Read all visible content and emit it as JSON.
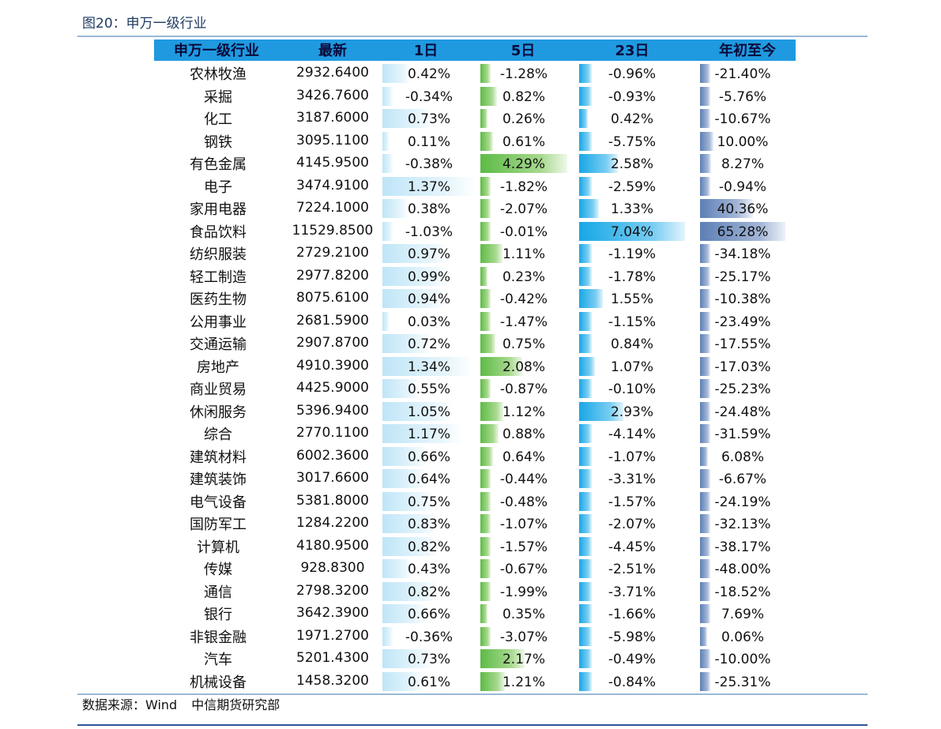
{
  "figure_title": "图20：申万一级行业",
  "source": {
    "label": "数据来源：Wind",
    "org": "中信期货研究部"
  },
  "chart_data": {
    "type": "table",
    "title": "图20：申万一级行业",
    "columns": [
      "申万一级行业",
      "最新",
      "1日",
      "5日",
      "23日",
      "年初至今"
    ],
    "rows": [
      {
        "industry": "农林牧渔",
        "latest": "2932.6400",
        "d1": "0.42%",
        "d5": "-1.28%",
        "d23": "-0.96%",
        "ytd": "-21.40%"
      },
      {
        "industry": "采掘",
        "latest": "3426.7600",
        "d1": "-0.34%",
        "d5": "0.82%",
        "d23": "-0.93%",
        "ytd": "-5.76%"
      },
      {
        "industry": "化工",
        "latest": "3187.6000",
        "d1": "0.73%",
        "d5": "0.26%",
        "d23": "0.42%",
        "ytd": "-10.67%"
      },
      {
        "industry": "钢铁",
        "latest": "3095.1100",
        "d1": "0.11%",
        "d5": "0.61%",
        "d23": "-5.75%",
        "ytd": "10.00%"
      },
      {
        "industry": "有色金属",
        "latest": "4145.9500",
        "d1": "-0.38%",
        "d5": "4.29%",
        "d23": "2.58%",
        "ytd": "8.27%"
      },
      {
        "industry": "电子",
        "latest": "3474.9100",
        "d1": "1.37%",
        "d5": "-1.82%",
        "d23": "-2.59%",
        "ytd": "-0.94%"
      },
      {
        "industry": "家用电器",
        "latest": "7224.1000",
        "d1": "0.38%",
        "d5": "-2.07%",
        "d23": "1.33%",
        "ytd": "40.36%"
      },
      {
        "industry": "食品饮料",
        "latest": "11529.8500",
        "d1": "-1.03%",
        "d5": "-0.01%",
        "d23": "7.04%",
        "ytd": "65.28%"
      },
      {
        "industry": "纺织服装",
        "latest": "2729.2100",
        "d1": "0.97%",
        "d5": "1.11%",
        "d23": "-1.19%",
        "ytd": "-34.18%"
      },
      {
        "industry": "轻工制造",
        "latest": "2977.8200",
        "d1": "0.99%",
        "d5": "0.23%",
        "d23": "-1.78%",
        "ytd": "-25.17%"
      },
      {
        "industry": "医药生物",
        "latest": "8075.6100",
        "d1": "0.94%",
        "d5": "-0.42%",
        "d23": "1.55%",
        "ytd": "-10.38%"
      },
      {
        "industry": "公用事业",
        "latest": "2681.5900",
        "d1": "0.03%",
        "d5": "-1.47%",
        "d23": "-1.15%",
        "ytd": "-23.49%"
      },
      {
        "industry": "交通运输",
        "latest": "2907.8700",
        "d1": "0.72%",
        "d5": "0.75%",
        "d23": "0.84%",
        "ytd": "-17.55%"
      },
      {
        "industry": "房地产",
        "latest": "4910.3900",
        "d1": "1.34%",
        "d5": "2.08%",
        "d23": "1.07%",
        "ytd": "-17.03%"
      },
      {
        "industry": "商业贸易",
        "latest": "4425.9000",
        "d1": "0.55%",
        "d5": "-0.87%",
        "d23": "-0.10%",
        "ytd": "-25.23%"
      },
      {
        "industry": "休闲服务",
        "latest": "5396.9400",
        "d1": "1.05%",
        "d5": "1.12%",
        "d23": "2.93%",
        "ytd": "-24.48%"
      },
      {
        "industry": "综合",
        "latest": "2770.1100",
        "d1": "1.17%",
        "d5": "0.88%",
        "d23": "-4.14%",
        "ytd": "-31.59%"
      },
      {
        "industry": "建筑材料",
        "latest": "6002.3600",
        "d1": "0.66%",
        "d5": "0.64%",
        "d23": "-1.07%",
        "ytd": "6.08%"
      },
      {
        "industry": "建筑装饰",
        "latest": "3017.6600",
        "d1": "0.64%",
        "d5": "-0.44%",
        "d23": "-3.31%",
        "ytd": "-6.67%"
      },
      {
        "industry": "电气设备",
        "latest": "5381.8000",
        "d1": "0.75%",
        "d5": "-0.48%",
        "d23": "-1.57%",
        "ytd": "-24.19%"
      },
      {
        "industry": "国防军工",
        "latest": "1284.2200",
        "d1": "0.83%",
        "d5": "-1.07%",
        "d23": "-2.07%",
        "ytd": "-32.13%"
      },
      {
        "industry": "计算机",
        "latest": "4180.9500",
        "d1": "0.82%",
        "d5": "-1.57%",
        "d23": "-4.45%",
        "ytd": "-38.17%"
      },
      {
        "industry": "传媒",
        "latest": "928.8300",
        "d1": "0.43%",
        "d5": "-0.67%",
        "d23": "-2.51%",
        "ytd": "-48.00%"
      },
      {
        "industry": "通信",
        "latest": "2798.3200",
        "d1": "0.82%",
        "d5": "-1.99%",
        "d23": "-3.71%",
        "ytd": "-18.52%"
      },
      {
        "industry": "银行",
        "latest": "3642.3900",
        "d1": "0.66%",
        "d5": "0.35%",
        "d23": "-1.66%",
        "ytd": "7.69%"
      },
      {
        "industry": "非银金融",
        "latest": "1971.2700",
        "d1": "-0.36%",
        "d5": "-3.07%",
        "d23": "-5.98%",
        "ytd": "0.06%"
      },
      {
        "industry": "汽车",
        "latest": "5201.4300",
        "d1": "0.73%",
        "d5": "2.17%",
        "d23": "-0.49%",
        "ytd": "-10.00%"
      },
      {
        "industry": "机械设备",
        "latest": "1458.3200",
        "d1": "0.61%",
        "d5": "1.21%",
        "d23": "-0.84%",
        "ytd": "-25.31%"
      }
    ],
    "colors": {
      "header_bg": "#1f9ae0",
      "bar_1d": "#bfe5f7",
      "bar_5d": "#5dbb46",
      "bar_23d": "#18a7e6",
      "bar_ytd": "#5d7fb5"
    }
  }
}
